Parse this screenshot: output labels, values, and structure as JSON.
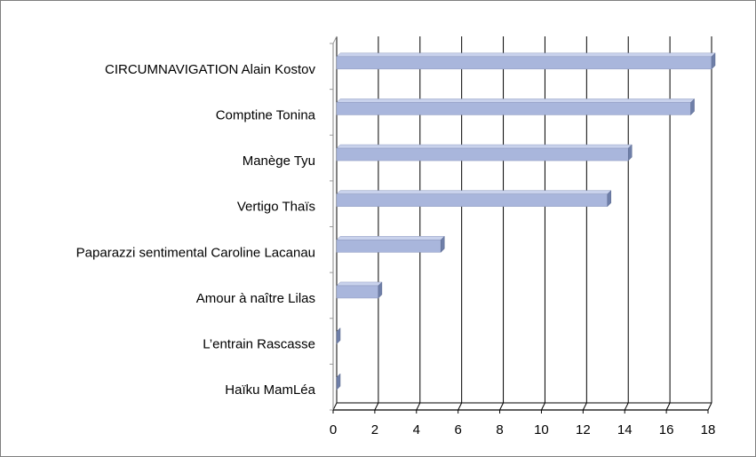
{
  "chart_data": {
    "type": "bar",
    "orientation": "horizontal",
    "style": "3d",
    "categories": [
      "CIRCUMNAVIGATION Alain Kostov",
      "Comptine  Tonina",
      "Manège Tyu",
      "Vertigo Thaïs",
      "Paparazzi sentimental Caroline Lacanau",
      "Amour à naître Lilas",
      "L’entrain Rascasse",
      "Haïku MamLéa"
    ],
    "values": [
      18,
      17,
      14,
      13,
      5,
      2,
      0,
      0
    ],
    "xlim": [
      0,
      18
    ],
    "x_ticks": [
      "0",
      "2",
      "4",
      "6",
      "8",
      "10",
      "12",
      "14",
      "16",
      "18"
    ],
    "grid": "vertical",
    "legend": "none",
    "colors": {
      "bar_front": "#a9b6dc",
      "bar_top": "#c9d2ec",
      "bar_side": "#6f7fa8",
      "grid": "#000000",
      "wall_side": "#9a9a9a"
    }
  }
}
